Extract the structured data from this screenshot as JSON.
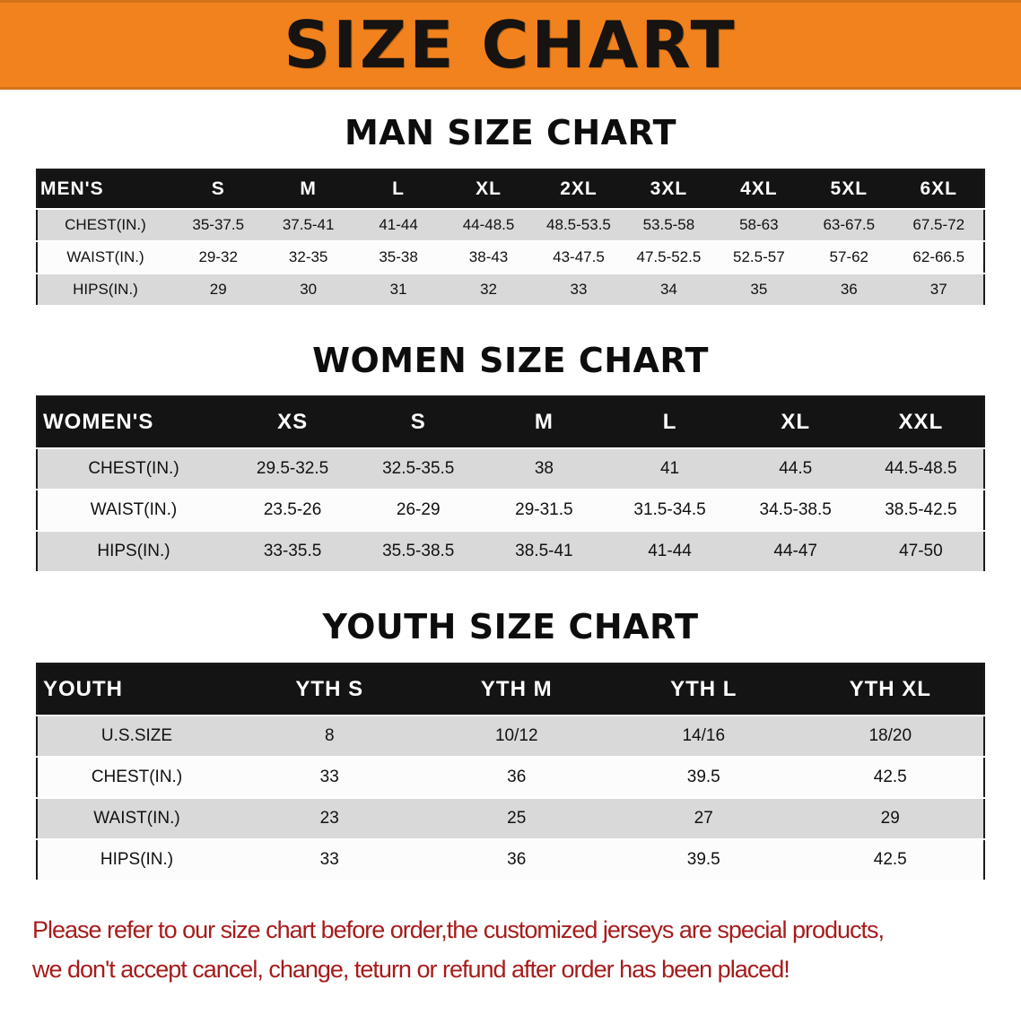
{
  "banner": {
    "title": "SIZE CHART"
  },
  "chart_data": [
    {
      "type": "table",
      "name": "men-size-chart",
      "title": "MAN SIZE CHART",
      "columns": [
        "MEN'S",
        "S",
        "M",
        "L",
        "XL",
        "2XL",
        "3XL",
        "4XL",
        "5XL",
        "6XL"
      ],
      "rows": [
        [
          "CHEST(IN.)",
          "35-37.5",
          "37.5-41",
          "41-44",
          "44-48.5",
          "48.5-53.5",
          "53.5-58",
          "58-63",
          "63-67.5",
          "67.5-72"
        ],
        [
          "WAIST(IN.)",
          "29-32",
          "32-35",
          "35-38",
          "38-43",
          "43-47.5",
          "47.5-52.5",
          "52.5-57",
          "57-62",
          "62-66.5"
        ],
        [
          "HIPS(IN.)",
          "29",
          "30",
          "31",
          "32",
          "33",
          "34",
          "35",
          "36",
          "37"
        ]
      ]
    },
    {
      "type": "table",
      "name": "women-size-chart",
      "title": "WOMEN SIZE CHART",
      "columns": [
        "WOMEN'S",
        "XS",
        "S",
        "M",
        "L",
        "XL",
        "XXL"
      ],
      "rows": [
        [
          "CHEST(IN.)",
          "29.5-32.5",
          "32.5-35.5",
          "38",
          "41",
          "44.5",
          "44.5-48.5"
        ],
        [
          "WAIST(IN.)",
          "23.5-26",
          "26-29",
          "29-31.5",
          "31.5-34.5",
          "34.5-38.5",
          "38.5-42.5"
        ],
        [
          "HIPS(IN.)",
          "33-35.5",
          "35.5-38.5",
          "38.5-41",
          "41-44",
          "44-47",
          "47-50"
        ]
      ]
    },
    {
      "type": "table",
      "name": "youth-size-chart",
      "title": "YOUTH SIZE CHART",
      "columns": [
        "YOUTH",
        "YTH S",
        "YTH M",
        "YTH L",
        "YTH XL"
      ],
      "rows": [
        [
          "U.S.SIZE",
          "8",
          "10/12",
          "14/16",
          "18/20"
        ],
        [
          "CHEST(IN.)",
          "33",
          "36",
          "39.5",
          "42.5"
        ],
        [
          "WAIST(IN.)",
          "23",
          "25",
          "27",
          "29"
        ],
        [
          "HIPS(IN.)",
          "33",
          "36",
          "39.5",
          "42.5"
        ]
      ]
    }
  ],
  "disclaimer": {
    "line1": "Please refer to our size chart before order,the customized jerseys are special products,",
    "line2": "we don't accept cancel, change, teturn or refund after order has been placed!"
  },
  "colors": {
    "banner_bg": "#f2821d",
    "header_bg": "#141414",
    "row_gray": "#d9d9d9",
    "row_white": "#fcfcfc",
    "disclaimer_red": "#a61c1c"
  }
}
